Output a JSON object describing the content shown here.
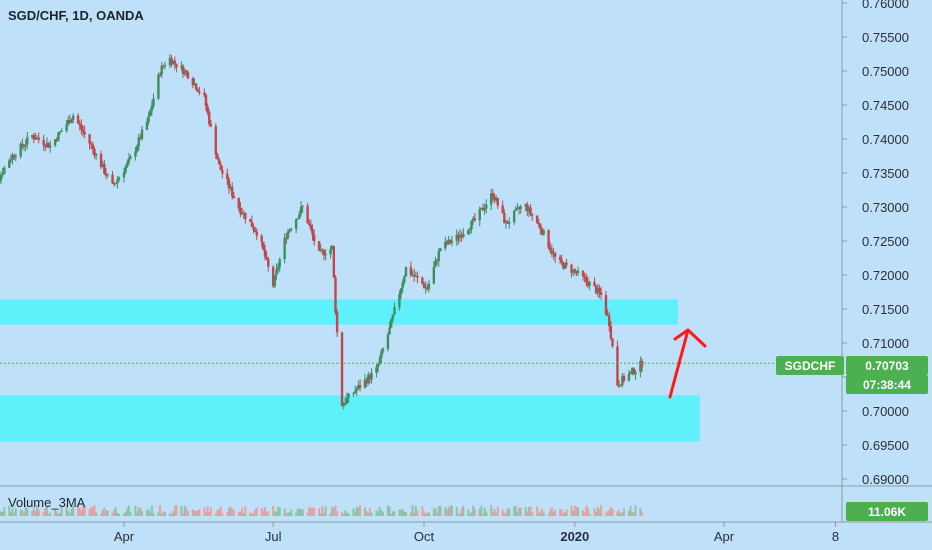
{
  "chart_title": "SGD/CHF, 1D, OANDA",
  "volume_label": "Volume_3MA",
  "symbol_badge": "SGDCHF",
  "price_badge": "0.70703",
  "countdown_badge": "07:38:44",
  "volume_badge": "11.06K",
  "colors": {
    "background": "#bfe0f9",
    "zone": "#5ef0fb",
    "up": "#3d8f63",
    "down": "#c0474b",
    "arrow": "#ff0000",
    "badge": "#4caf50",
    "dotted": "#4caf50"
  },
  "chart_data": {
    "type": "candlestick",
    "title": "SGD/CHF, 1D, OANDA",
    "y_ticks": [
      "0.76000",
      "0.75500",
      "0.75000",
      "0.74500",
      "0.74000",
      "0.73500",
      "0.73000",
      "0.72500",
      "0.72000",
      "0.71500",
      "0.71000",
      "0.70500",
      "0.70000",
      "0.69500",
      "0.69000"
    ],
    "x_ticks": [
      "Apr",
      "Jul",
      "Oct",
      "2020",
      "Apr",
      "8"
    ],
    "ylim": [
      0.69,
      0.76
    ],
    "last_price": 0.70703,
    "close_path": [
      [
        "2019-01-07",
        0.731
      ],
      [
        "2019-01-21",
        0.737
      ],
      [
        "2019-02-04",
        0.7405
      ],
      [
        "2019-02-15",
        0.739
      ],
      [
        "2019-03-01",
        0.7435
      ],
      [
        "2019-03-12",
        0.739
      ],
      [
        "2019-03-25",
        0.733
      ],
      [
        "2019-04-05",
        0.737
      ],
      [
        "2019-04-16",
        0.743
      ],
      [
        "2019-04-23",
        0.75
      ],
      [
        "2019-04-28",
        0.752
      ],
      [
        "2019-05-10",
        0.7495
      ],
      [
        "2019-05-20",
        0.746
      ],
      [
        "2019-05-29",
        0.736
      ],
      [
        "2019-06-10",
        0.73
      ],
      [
        "2019-06-22",
        0.726
      ],
      [
        "2019-07-01",
        0.7185
      ],
      [
        "2019-07-09",
        0.726
      ],
      [
        "2019-07-19",
        0.73
      ],
      [
        "2019-07-29",
        0.723
      ],
      [
        "2019-08-06",
        0.724
      ],
      [
        "2019-08-08",
        0.715
      ],
      [
        "2019-08-12",
        0.701
      ],
      [
        "2019-08-20",
        0.703
      ],
      [
        "2019-09-02",
        0.706
      ],
      [
        "2019-09-10",
        0.712
      ],
      [
        "2019-09-20",
        0.721
      ],
      [
        "2019-10-03",
        0.718
      ],
      [
        "2019-10-11",
        0.724
      ],
      [
        "2019-10-21",
        0.7255
      ],
      [
        "2019-11-01",
        0.728
      ],
      [
        "2019-11-12",
        0.732
      ],
      [
        "2019-11-20",
        0.7275
      ],
      [
        "2019-12-01",
        0.7305
      ],
      [
        "2019-12-11",
        0.727
      ],
      [
        "2019-12-21",
        0.722
      ],
      [
        "2020-01-01",
        0.7205
      ],
      [
        "2020-01-11",
        0.7185
      ],
      [
        "2020-01-17",
        0.717
      ],
      [
        "2020-01-22",
        0.713
      ],
      [
        "2020-01-27",
        0.704
      ],
      [
        "2020-02-04",
        0.7055
      ],
      [
        "2020-02-11",
        0.707
      ]
    ],
    "zones": [
      {
        "from": 0.7127,
        "to": 0.7164
      },
      {
        "from": 0.6955,
        "to": 0.7023
      }
    ]
  }
}
